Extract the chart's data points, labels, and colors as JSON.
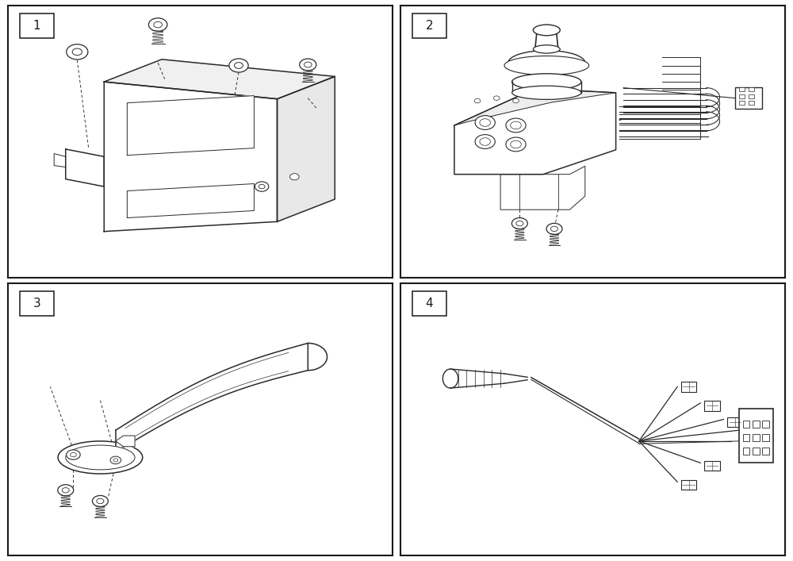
{
  "background_color": "#ffffff",
  "line_color": "#2a2a2a",
  "panel_labels": [
    "1",
    "2",
    "3",
    "4"
  ],
  "lw_main": 1.1,
  "lw_thin": 0.7,
  "lw_thick": 1.5
}
